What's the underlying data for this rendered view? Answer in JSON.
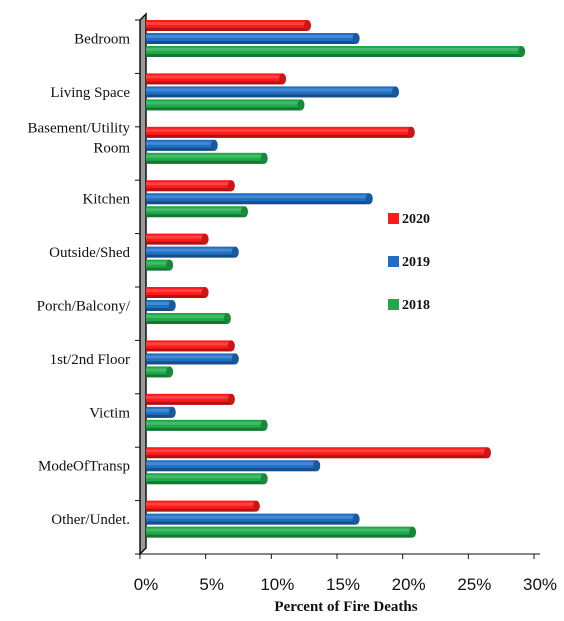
{
  "chart_data": {
    "type": "bar",
    "orientation": "horizontal",
    "style": "3d-cylinder",
    "xlabel": "Percent of Fire Deaths",
    "ylabel": "",
    "xlim": [
      0,
      30
    ],
    "xticks": [
      0,
      5,
      10,
      15,
      20,
      25,
      30
    ],
    "tick_format": "{v}%",
    "categories": [
      "Bedroom",
      "Living Space",
      [
        "Basement/Utility",
        "Room"
      ],
      "Kitchen",
      "Outside/Shed",
      "Porch/Balcony/",
      "1st/2nd Floor",
      "Victim",
      "ModeOfTransp",
      "Other/Undet."
    ],
    "series": [
      {
        "name": "2020",
        "color": "#ff1a1a",
        "values": [
          12.3,
          10.4,
          20.2,
          6.5,
          4.5,
          4.5,
          6.5,
          6.5,
          26.0,
          8.4
        ]
      },
      {
        "name": "2019",
        "color": "#1f6fc4",
        "values": [
          16.0,
          19.0,
          5.2,
          17.0,
          6.8,
          2.0,
          6.8,
          2.0,
          13.0,
          16.0
        ]
      },
      {
        "name": "2018",
        "color": "#1faa4a",
        "values": [
          28.6,
          11.8,
          9.0,
          7.5,
          1.8,
          6.2,
          1.8,
          9.0,
          9.0,
          20.3
        ]
      }
    ],
    "grid": false,
    "legend_position": "right"
  }
}
